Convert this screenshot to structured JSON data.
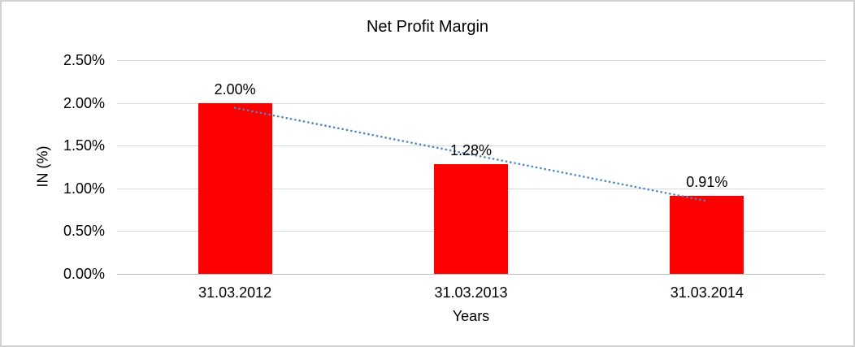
{
  "chart_data": {
    "type": "bar",
    "title": "Net Profit Margin",
    "xlabel": "Years",
    "ylabel": "IN (%)",
    "categories": [
      "31.03.2012",
      "31.03.2013",
      "31.03.2014"
    ],
    "series": [
      {
        "name": "Net Profit Margin",
        "values": [
          2.0,
          1.28,
          0.91
        ]
      }
    ],
    "value_labels": [
      "2.00%",
      "1.28%",
      "0.91%"
    ],
    "y_ticks": [
      "0.00%",
      "0.50%",
      "1.00%",
      "1.50%",
      "2.00%",
      "2.50%"
    ],
    "ylim": [
      0,
      2.5
    ],
    "grid": true,
    "legend": false,
    "bar_color": "#FF0000",
    "trendline": {
      "type": "linear",
      "style": "dotted",
      "color": "#4A86C8"
    },
    "colors": {
      "gridline": "#D9D9D9",
      "axis_line": "#BFBFBF",
      "text": "#000000",
      "frame_border": "#D2D2D2",
      "background": "#FFFFFF"
    }
  }
}
